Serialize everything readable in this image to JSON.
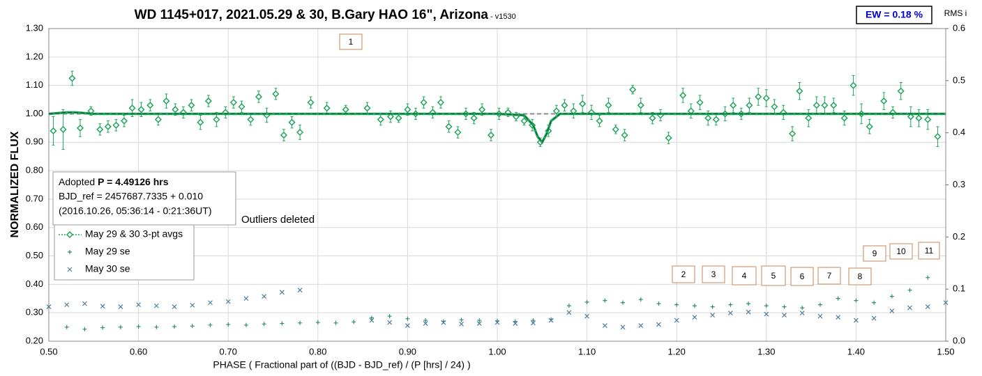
{
  "chart_data": {
    "type": "scatter",
    "title": "WD 1145+017, 2021.05.29 & 30, B.Gary HAO 16\", Arizona",
    "version": "- v1530",
    "ew": "EW = 0.18 %",
    "x_label": "PHASE ( Fractional part of ((BJD - BJD_ref) / (P [hrs] / 24) )",
    "y_label": "NORMALIZED FLUX",
    "y2_label": "RMS i",
    "note": "Outliers deleted",
    "info": {
      "adopted": "Adopted",
      "period": "P = 4.49126 hrs",
      "bjd": "BJD_ref = 2457687.7335 + 0.010",
      "date": "(2016.10.26, 05:36:14 - 0:21:36UT)"
    },
    "annotations": [
      "1",
      "2",
      "3",
      "4",
      "5",
      "6",
      "7",
      "8",
      "9",
      "10",
      "11"
    ],
    "xlim": [
      0.5,
      1.5
    ],
    "xticks": [
      {
        "value": 0.5,
        "label": "0.50"
      },
      {
        "value": 0.6,
        "label": "0.60"
      },
      {
        "value": 0.7,
        "label": "0.70"
      },
      {
        "value": 0.8,
        "label": "0.80"
      },
      {
        "value": 0.9,
        "label": "0.90"
      },
      {
        "value": 1.0,
        "label": "1.00"
      },
      {
        "value": 1.1,
        "label": "1.10"
      },
      {
        "value": 1.2,
        "label": "1.20"
      },
      {
        "value": 1.3,
        "label": "1.30"
      },
      {
        "value": 1.4,
        "label": "1.40"
      },
      {
        "value": 1.5,
        "label": "1.50"
      }
    ],
    "ylim": [
      0.2,
      1.3
    ],
    "yticks": [
      {
        "value": 0.2,
        "label": "0.20"
      },
      {
        "value": 0.3,
        "label": "0.30"
      },
      {
        "value": 0.4,
        "label": "0.40"
      },
      {
        "value": 0.5,
        "label": "0.50"
      },
      {
        "value": 0.6,
        "label": "0.60"
      },
      {
        "value": 0.7,
        "label": "0.70"
      },
      {
        "value": 0.8,
        "label": "0.80"
      },
      {
        "value": 0.9,
        "label": "0.90"
      },
      {
        "value": 1.0,
        "label": "1.00"
      },
      {
        "value": 1.1,
        "label": "1.10"
      },
      {
        "value": 1.2,
        "label": "1.20"
      },
      {
        "value": 1.3,
        "label": "1.30"
      }
    ],
    "y2lim": [
      0,
      0.6
    ],
    "y2ticks": [
      {
        "value": 0,
        "label": "0.0"
      },
      0.1,
      0.2,
      0.3,
      0.4,
      0.5,
      0.6
    ],
    "grid": true,
    "baseline": 1,
    "series": [
      {
        "name": "May 29 & 30 3-pt avgs",
        "color": "#1fa65a",
        "marker": "diamond",
        "x": [
          0.505,
          0.516,
          0.526,
          0.535,
          0.547,
          0.557,
          0.566,
          0.575,
          0.584,
          0.593,
          0.603,
          0.613,
          0.622,
          0.631,
          0.641,
          0.65,
          0.659,
          0.669,
          0.678,
          0.687,
          0.697,
          0.706,
          0.715,
          0.725,
          0.734,
          0.743,
          0.753,
          0.762,
          0.771,
          0.78,
          0.792,
          0.81,
          0.831,
          0.855,
          0.87,
          0.881,
          0.89,
          0.9,
          0.909,
          0.918,
          0.928,
          0.937,
          0.946,
          0.956,
          0.965,
          0.974,
          0.983,
          0.993,
          1.002,
          1.012,
          1.021,
          1.03,
          1.039,
          1.048,
          1.057,
          1.066,
          1.075,
          1.085,
          1.095,
          1.105,
          1.114,
          1.124,
          1.132,
          1.142,
          1.151,
          1.16,
          1.173,
          1.182,
          1.191,
          1.207,
          1.216,
          1.226,
          1.235,
          1.244,
          1.254,
          1.263,
          1.272,
          1.281,
          1.291,
          1.3,
          1.309,
          1.319,
          1.329,
          1.337,
          1.347,
          1.356,
          1.365,
          1.375,
          1.387,
          1.397,
          1.406,
          1.415,
          1.431,
          1.441,
          1.45,
          1.461,
          1.47,
          1.48,
          1.491
        ],
        "values": [
          0.94,
          0.945,
          1.125,
          0.95,
          1.01,
          0.945,
          0.955,
          0.96,
          0.975,
          1.02,
          1.015,
          1.03,
          0.98,
          1.045,
          1.015,
          1.005,
          1.03,
          0.97,
          1.045,
          0.98,
          1.005,
          1.04,
          1.025,
          0.98,
          1.06,
          0.995,
          1.07,
          0.925,
          0.97,
          0.935,
          1.04,
          1.02,
          1.015,
          1.02,
          0.98,
          0.99,
          0.985,
          1.015,
          1.0,
          1.04,
          1.005,
          1.04,
          0.955,
          0.935,
          1.0,
          0.985,
          1.015,
          0.925,
          1.0,
          1.005,
          0.99,
          0.975,
          0.96,
          0.9,
          0.94,
          1.01,
          1.03,
          1.01,
          1.035,
          1.005,
          0.975,
          1.03,
          0.945,
          0.925,
          1.085,
          1.03,
          0.985,
          0.995,
          0.915,
          1.065,
          1.01,
          1.04,
          0.985,
          0.98,
          1.0,
          1.03,
          1.0,
          1.03,
          1.06,
          1.055,
          1.025,
          1.005,
          0.93,
          1.08,
          0.985,
          1.03,
          1.03,
          1.03,
          0.985,
          1.1,
          1.0,
          0.955,
          1.045,
          1.005,
          1.08,
          0.99,
          0.985,
          0.98,
          0.92
        ],
        "errors": [
          0.05,
          0.07,
          0.025,
          0.03,
          0.015,
          0.02,
          0.02,
          0.02,
          0.02,
          0.03,
          0.025,
          0.02,
          0.02,
          0.025,
          0.02,
          0.02,
          0.02,
          0.025,
          0.02,
          0.025,
          0.02,
          0.02,
          0.02,
          0.02,
          0.02,
          0.025,
          0.02,
          0.02,
          0.02,
          0.025,
          0.02,
          0.02,
          0.015,
          0.02,
          0.02,
          0.02,
          0.015,
          0.02,
          0.02,
          0.02,
          0.02,
          0.02,
          0.02,
          0.02,
          0.02,
          0.02,
          0.02,
          0.02,
          0.02,
          0.015,
          0.015,
          0.015,
          0.02,
          0.015,
          0.02,
          0.02,
          0.02,
          0.025,
          0.03,
          0.025,
          0.02,
          0.025,
          0.015,
          0.02,
          0.015,
          0.025,
          0.02,
          0.02,
          0.02,
          0.025,
          0.025,
          0.025,
          0.025,
          0.02,
          0.025,
          0.025,
          0.02,
          0.025,
          0.03,
          0.03,
          0.025,
          0.025,
          0.025,
          0.03,
          0.03,
          0.03,
          0.03,
          0.025,
          0.025,
          0.035,
          0.035,
          0.025,
          0.03,
          0.02,
          0.03,
          0.035,
          0.03,
          0.035,
          0.035
        ]
      },
      {
        "name": "May 29 se",
        "color": "#2e8c6e",
        "marker": "plus",
        "axis": "y2",
        "x": [
          0.52,
          0.54,
          0.56,
          0.58,
          0.6,
          0.62,
          0.64,
          0.66,
          0.68,
          0.7,
          0.72,
          0.74,
          0.76,
          0.78,
          0.8,
          0.82,
          0.84,
          0.86,
          0.88,
          0.9,
          0.92,
          0.94,
          0.96,
          0.98,
          1.0,
          1.02,
          1.04,
          1.06,
          1.08,
          1.1,
          1.12,
          1.14,
          1.16,
          1.18,
          1.2,
          1.22,
          1.24,
          1.26,
          1.28,
          1.3,
          1.32,
          1.34,
          1.36,
          1.38,
          1.4,
          1.42,
          1.44,
          1.46,
          1.48
        ],
        "values": [
          0.027,
          0.023,
          0.026,
          0.027,
          0.028,
          0.027,
          0.028,
          0.029,
          0.031,
          0.032,
          0.031,
          0.033,
          0.034,
          0.035,
          0.036,
          0.035,
          0.037,
          0.045,
          0.048,
          0.043,
          0.04,
          0.038,
          0.041,
          0.04,
          0.039,
          0.038,
          0.04,
          0.042,
          0.068,
          0.075,
          0.078,
          0.074,
          0.08,
          0.072,
          0.07,
          0.068,
          0.066,
          0.07,
          0.072,
          0.068,
          0.066,
          0.064,
          0.07,
          0.082,
          0.078,
          0.074,
          0.086,
          0.098,
          0.122
        ]
      },
      {
        "name": "May 30 se",
        "color": "#4d7c9c",
        "marker": "cross",
        "axis": "y2",
        "x": [
          0.5,
          0.52,
          0.54,
          0.56,
          0.58,
          0.6,
          0.62,
          0.64,
          0.66,
          0.68,
          0.7,
          0.72,
          0.74,
          0.76,
          0.78,
          0.86,
          0.88,
          0.9,
          0.92,
          0.94,
          0.96,
          0.98,
          1.0,
          1.02,
          1.04,
          1.06,
          1.08,
          1.1,
          1.12,
          1.14,
          1.16,
          1.18,
          1.2,
          1.22,
          1.24,
          1.26,
          1.28,
          1.3,
          1.32,
          1.34,
          1.36,
          1.38,
          1.4,
          1.42,
          1.44,
          1.46,
          1.48,
          1.5
        ],
        "values": [
          0.066,
          0.07,
          0.072,
          0.067,
          0.066,
          0.07,
          0.068,
          0.066,
          0.069,
          0.074,
          0.076,
          0.082,
          0.086,
          0.094,
          0.098,
          0.04,
          0.036,
          0.03,
          0.034,
          0.036,
          0.033,
          0.034,
          0.036,
          0.034,
          0.035,
          0.04,
          0.055,
          0.048,
          0.03,
          0.027,
          0.03,
          0.032,
          0.04,
          0.046,
          0.05,
          0.054,
          0.056,
          0.052,
          0.05,
          0.054,
          0.048,
          0.046,
          0.04,
          0.044,
          0.058,
          0.064,
          0.066,
          0.074
        ]
      },
      {
        "color": "#1fa65a",
        "marker": "line",
        "x": [
          0.5,
          0.52,
          0.53,
          0.55,
          1.0,
          1.03,
          1.04,
          1.045,
          1.05,
          1.055,
          1.06,
          1.07,
          1.5
        ],
        "values": [
          1.0,
          1.005,
          1.005,
          1.0,
          1.0,
          0.995,
          0.96,
          0.92,
          0.9,
          0.93,
          0.975,
          1.0,
          1.0
        ]
      }
    ]
  }
}
